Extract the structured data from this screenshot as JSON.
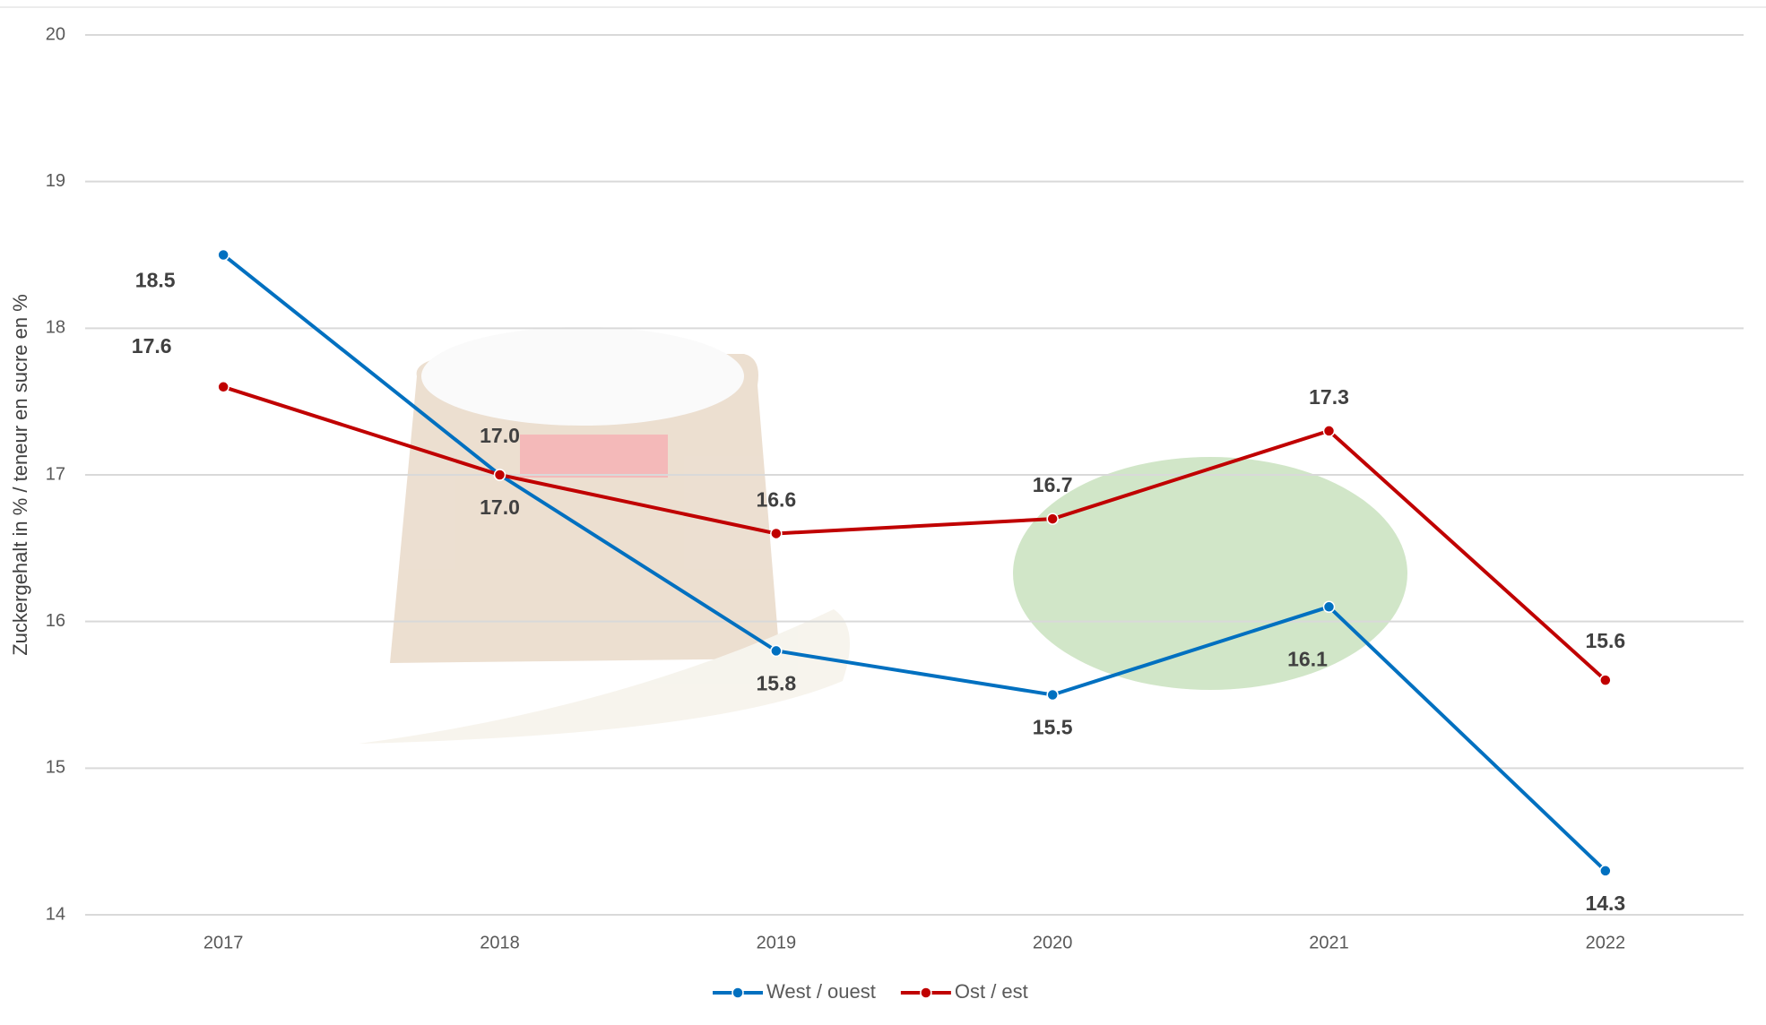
{
  "chart_data": {
    "type": "line",
    "y_label": "Zuckergehalt in % / teneur en sucre en %",
    "categories": [
      "2017",
      "2018",
      "2019",
      "2020",
      "2021",
      "2022"
    ],
    "series": [
      {
        "name": "West / ouest",
        "color": "#0070c0",
        "values": [
          18.5,
          17.0,
          15.8,
          15.5,
          16.1,
          14.3
        ],
        "value_labels": [
          "18.5",
          "17.0",
          "15.8",
          "15.5",
          "16.1",
          "14.3"
        ]
      },
      {
        "name": "Ost / est",
        "color": "#c00000",
        "values": [
          17.6,
          17.0,
          16.6,
          16.7,
          17.3,
          15.6
        ],
        "value_labels": [
          "17.6",
          "17.0",
          "16.6",
          "16.7",
          "17.3",
          "15.6"
        ]
      }
    ],
    "ylim": [
      14,
      20
    ],
    "yticks": [
      14,
      15,
      16,
      17,
      18,
      19,
      20
    ],
    "grid": true,
    "legend": "bottom"
  }
}
